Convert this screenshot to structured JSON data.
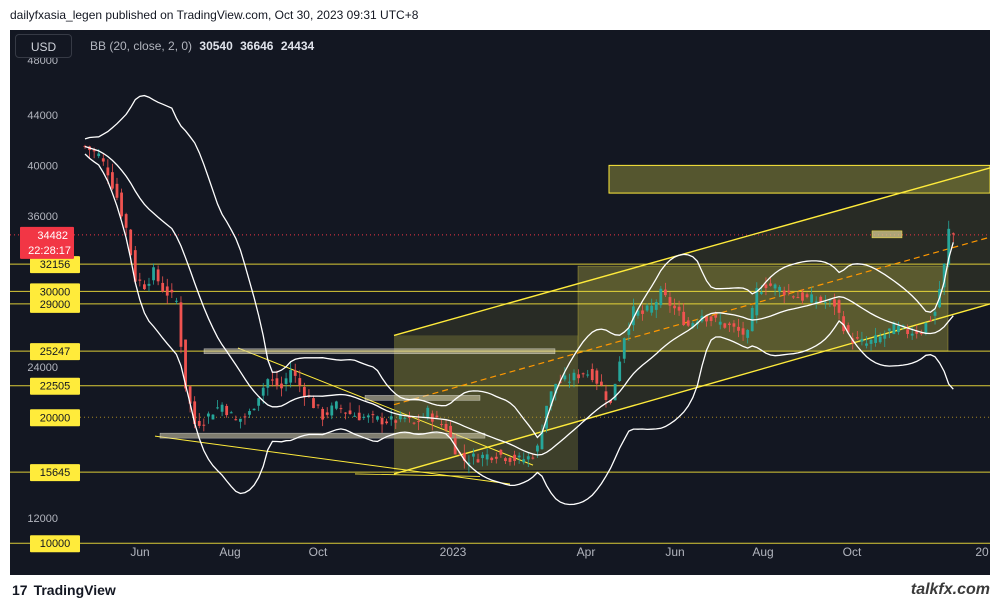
{
  "header": {
    "title": "dailyfxasia_legen published on TradingView.com, Oct 30, 2023 09:31 UTC+8"
  },
  "toolbar": {
    "currency": "USD",
    "indicator_label": "BB (20, close, 2, 0)",
    "indicator_values": [
      "30540",
      "36646",
      "24434"
    ]
  },
  "footer": {
    "logo_text": "TradingView",
    "logo_mark": "17",
    "watermark": "talkfx.com"
  },
  "colors": {
    "background": "#131722",
    "level_label_bg": "#ffeb3b",
    "price_label_bg": "#f23645",
    "band": "#ffffff",
    "trendline": "#ffeb3b",
    "zone_fill": "#8d8a3a"
  },
  "chart_data": {
    "type": "candlestick",
    "instrument_currency": "USD",
    "y_axis": {
      "ticks": [
        "44000",
        "40000",
        "36000",
        "24000",
        "12000"
      ],
      "clipped_top_tick": "48000"
    },
    "x_axis": {
      "ticks": [
        "Jun",
        "Aug",
        "Oct",
        "2023",
        "Apr",
        "Jun",
        "Aug",
        "Oct",
        "20"
      ]
    },
    "current_price": {
      "value": "34482",
      "countdown": "22:28:17"
    },
    "levels": [
      {
        "value": "32156",
        "y": 32156
      },
      {
        "value": "30000",
        "y": 30000
      },
      {
        "value": "29000",
        "y": 29000
      },
      {
        "value": "25247",
        "y": 25247
      },
      {
        "value": "22505",
        "y": 22505
      },
      {
        "value": "20000",
        "y": 20000
      },
      {
        "value": "15645",
        "y": 15645
      },
      {
        "value": "10000",
        "y": 10000
      }
    ],
    "bollinger": {
      "period": 20,
      "source": "close",
      "mult": 2,
      "offset": 0,
      "basis": 30540,
      "upper": 36646,
      "lower": 24434
    },
    "price_path": [
      [
        0,
        41500
      ],
      [
        3,
        40800
      ],
      [
        5,
        39500
      ],
      [
        7,
        37500
      ],
      [
        9,
        35000
      ],
      [
        11,
        31000
      ],
      [
        13,
        30500
      ],
      [
        15,
        31500
      ],
      [
        17,
        30200
      ],
      [
        20,
        29200
      ],
      [
        22,
        22500
      ],
      [
        24,
        19500
      ],
      [
        26,
        19800
      ],
      [
        28,
        20500
      ],
      [
        30,
        21000
      ],
      [
        33,
        19700
      ],
      [
        36,
        20300
      ],
      [
        38,
        21800
      ],
      [
        40,
        23000
      ],
      [
        43,
        22300
      ],
      [
        45,
        23800
      ],
      [
        47,
        22500
      ],
      [
        50,
        21000
      ],
      [
        52,
        20100
      ],
      [
        55,
        20900
      ],
      [
        58,
        20300
      ],
      [
        61,
        20000
      ],
      [
        64,
        19800
      ],
      [
        67,
        19700
      ],
      [
        70,
        19900
      ],
      [
        72,
        19400
      ],
      [
        75,
        20400
      ],
      [
        77,
        19700
      ],
      [
        79,
        19200
      ],
      [
        81,
        17500
      ],
      [
        83,
        16600
      ],
      [
        85,
        16800
      ],
      [
        87,
        16900
      ],
      [
        90,
        17100
      ],
      [
        93,
        16800
      ],
      [
        95,
        16600
      ],
      [
        97,
        16800
      ],
      [
        99,
        17500
      ],
      [
        101,
        21000
      ],
      [
        103,
        22700
      ],
      [
        106,
        23000
      ],
      [
        109,
        23600
      ],
      [
        111,
        23400
      ],
      [
        113,
        22400
      ],
      [
        115,
        21000
      ],
      [
        118,
        26500
      ],
      [
        120,
        28400
      ],
      [
        122,
        28200
      ],
      [
        124,
        28700
      ],
      [
        126,
        29800
      ],
      [
        129,
        28600
      ],
      [
        132,
        27300
      ],
      [
        135,
        28200
      ],
      [
        138,
        27600
      ],
      [
        141,
        27200
      ],
      [
        143,
        26800
      ],
      [
        145,
        26500
      ],
      [
        147,
        30000
      ],
      [
        149,
        30600
      ],
      [
        152,
        30200
      ],
      [
        155,
        29700
      ],
      [
        158,
        29400
      ],
      [
        161,
        29200
      ],
      [
        164,
        29000
      ],
      [
        167,
        26400
      ],
      [
        169,
        26000
      ],
      [
        171,
        25800
      ],
      [
        174,
        26300
      ],
      [
        177,
        27100
      ],
      [
        180,
        26800
      ],
      [
        183,
        26900
      ],
      [
        186,
        28400
      ],
      [
        188,
        32000
      ],
      [
        189,
        34800
      ],
      [
        190,
        34500
      ]
    ]
  }
}
